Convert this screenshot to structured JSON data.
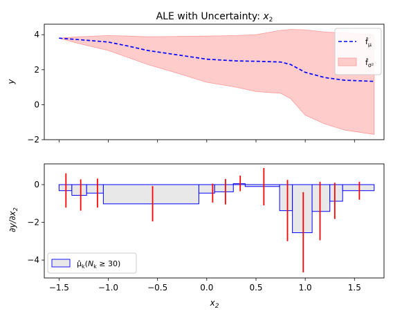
{
  "chart_data": [
    {
      "type": "line",
      "title": "ALE with Uncertainty: x₂",
      "ylabel": "y",
      "xlim": [
        -1.65,
        1.8
      ],
      "ylim": [
        -2,
        4.6
      ],
      "yticks": [
        -2,
        0,
        2,
        4
      ],
      "xticks": [
        -1.5,
        -1.0,
        -0.5,
        0.0,
        0.5,
        1.0,
        1.5
      ],
      "legend_position": "top-right",
      "series": [
        {
          "name": "f̂_μ",
          "style": "dashed",
          "color": "#0000ff",
          "x": [
            -1.5,
            -1.3,
            -1.0,
            -0.8,
            -0.6,
            -0.3,
            0.0,
            0.3,
            0.5,
            0.75,
            0.85,
            1.0,
            1.2,
            1.4,
            1.7
          ],
          "y": [
            3.8,
            3.72,
            3.58,
            3.35,
            3.1,
            2.85,
            2.6,
            2.5,
            2.48,
            2.44,
            2.3,
            1.85,
            1.55,
            1.4,
            1.33
          ]
        },
        {
          "name": "f̂_σ²",
          "style": "band",
          "color": "#ff9999",
          "x": [
            -1.5,
            -1.3,
            -1.0,
            -0.8,
            -0.6,
            -0.3,
            0.0,
            0.3,
            0.5,
            0.75,
            0.85,
            1.0,
            1.2,
            1.4,
            1.7
          ],
          "upper": [
            3.8,
            3.88,
            3.95,
            3.92,
            3.88,
            3.9,
            3.92,
            3.95,
            4.0,
            4.25,
            4.3,
            4.28,
            4.15,
            4.1,
            4.0
          ],
          "lower": [
            3.8,
            3.5,
            3.1,
            2.7,
            2.3,
            1.8,
            1.28,
            1.0,
            0.75,
            0.65,
            0.35,
            -0.6,
            -1.1,
            -1.45,
            -1.7
          ]
        }
      ]
    },
    {
      "type": "bar",
      "xlabel": "x₂",
      "ylabel": "∂y/∂x₂",
      "xlim": [
        -1.65,
        1.8
      ],
      "ylim": [
        -4.95,
        1.1
      ],
      "yticks": [
        -4,
        -2,
        0
      ],
      "xticks": [
        -1.5,
        -1.0,
        -0.5,
        0.0,
        0.5,
        1.0,
        1.5
      ],
      "xtick_labels": [
        "−1.5",
        "−1.0",
        "−0.5",
        "0.0",
        "0.5",
        "1.0",
        "1.5"
      ],
      "legend_position": "bottom-left",
      "legend": "μ̂ₖ(Nₖ ≥ 30)",
      "bar_fill": "#e8e8e8",
      "bar_edge": "#0000ff",
      "error_color": "#ff0000",
      "bins": [
        {
          "x0": -1.5,
          "x1": -1.37,
          "mean": -0.32,
          "err_lo": -1.22,
          "err_hi": 0.6,
          "err_x": -1.43
        },
        {
          "x0": -1.37,
          "x1": -1.22,
          "mean": -0.57,
          "err_lo": -1.38,
          "err_hi": 0.28,
          "err_x": -1.28
        },
        {
          "x0": -1.22,
          "x1": -1.05,
          "mean": -0.45,
          "err_lo": -1.22,
          "err_hi": 0.32,
          "err_x": -1.11
        },
        {
          "x0": -1.05,
          "x1": -0.08,
          "mean": -1.02,
          "err_lo": -1.95,
          "err_hi": -0.08,
          "err_x": -0.55
        },
        {
          "x0": -0.08,
          "x1": 0.08,
          "mean": -0.45,
          "err_lo": -0.95,
          "err_hi": 0.05,
          "err_x": 0.06
        },
        {
          "x0": 0.08,
          "x1": 0.27,
          "mean": -0.38,
          "err_lo": -1.05,
          "err_hi": 0.3,
          "err_x": 0.19
        },
        {
          "x0": 0.27,
          "x1": 0.39,
          "mean": 0.05,
          "err_lo": -0.35,
          "err_hi": 0.48,
          "err_x": 0.34
        },
        {
          "x0": 0.39,
          "x1": 0.74,
          "mean": -0.1,
          "err_lo": -1.1,
          "err_hi": 0.88,
          "err_x": 0.58
        },
        {
          "x0": 0.74,
          "x1": 0.87,
          "mean": -1.38,
          "err_lo": -3.0,
          "err_hi": 0.25,
          "err_x": 0.82
        },
        {
          "x0": 0.87,
          "x1": 1.07,
          "mean": -2.55,
          "err_lo": -4.65,
          "err_hi": -0.4,
          "err_x": 0.98
        },
        {
          "x0": 1.07,
          "x1": 1.25,
          "mean": -1.42,
          "err_lo": -2.95,
          "err_hi": 0.15,
          "err_x": 1.15
        },
        {
          "x0": 1.25,
          "x1": 1.38,
          "mean": -0.88,
          "err_lo": -1.82,
          "err_hi": 0.1,
          "err_x": 1.3
        },
        {
          "x0": 1.38,
          "x1": 1.7,
          "mean": -0.32,
          "err_lo": -0.8,
          "err_hi": 0.15,
          "err_x": 1.55
        }
      ]
    }
  ]
}
